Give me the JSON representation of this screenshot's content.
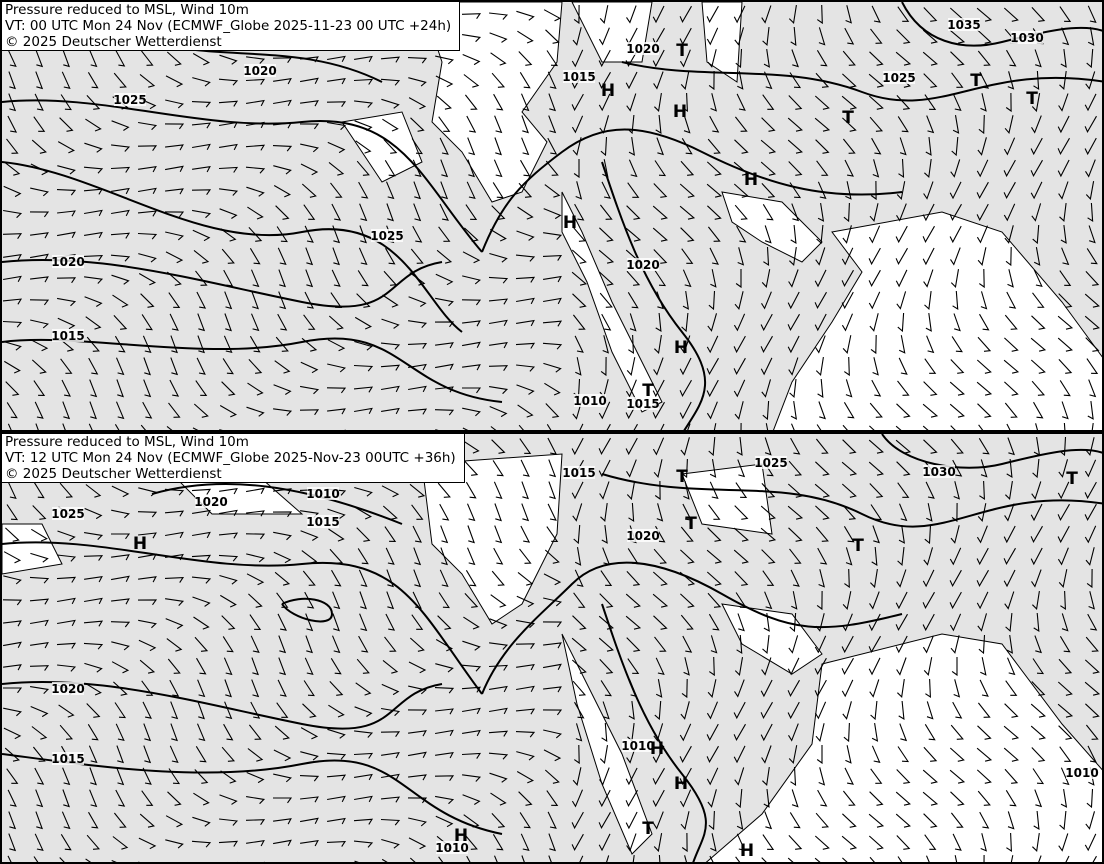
{
  "panels": [
    {
      "title": "Pressure reduced to MSL, Wind 10m",
      "valid_time": "VT: 00 UTC Mon 24 Nov (ECMWF_Globe 2025-11-23 00 UTC +24h)",
      "copyright": "© 2025 Deutscher Wetterdienst",
      "isobar_labels": [
        "1020",
        "1025",
        "1015",
        "1020",
        "1035",
        "1030",
        "1025",
        "1025",
        "1020",
        "1015",
        "1020",
        "1010",
        "1015"
      ],
      "pressure_centers": [
        "H",
        "H",
        "H",
        "H",
        "H",
        "T",
        "T",
        "T",
        "T",
        "T"
      ]
    },
    {
      "title": "Pressure reduced to MSL, Wind 10m",
      "valid_time": "VT: 12 UTC Mon 24 Nov (ECMWF_Globe 2025-Nov-23 00UTC +36h)",
      "copyright": "© 2025 Deutscher Wetterdienst",
      "isobar_labels": [
        "1015",
        "1025",
        "1030",
        "1025",
        "1020",
        "1010",
        "1015",
        "1020",
        "1020",
        "1015",
        "1010",
        "1010",
        "1010"
      ],
      "pressure_centers": [
        "H",
        "H",
        "H",
        "H",
        "H",
        "T",
        "T",
        "T",
        "T",
        "T"
      ]
    }
  ],
  "colors": {
    "land_gray": "#e4e4e4",
    "sea_white": "#ffffff",
    "lines": "#000000"
  }
}
